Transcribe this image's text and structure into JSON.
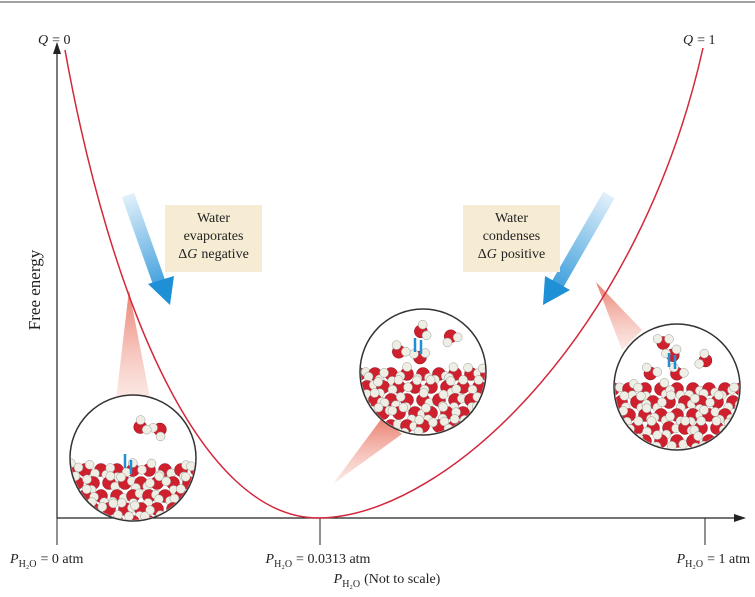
{
  "top_left": {
    "symbol": "Q",
    "text": "= 0"
  },
  "top_right": {
    "symbol": "Q",
    "text": "= 1"
  },
  "y_axis_label": "Free energy",
  "callouts": [
    {
      "lines": [
        "Water",
        "evaporates"
      ],
      "delta": "Δ",
      "variable": "G",
      "sign": "negative"
    },
    {
      "lines": [
        "Water",
        "condenses"
      ],
      "delta": "Δ",
      "variable": "G",
      "sign": "positive"
    }
  ],
  "x_labels": [
    {
      "symbol": "P",
      "subscript": "H₂O",
      "text": "= 0 atm"
    },
    {
      "symbol": "P",
      "subscript": "H₂O",
      "text": "= 0.0313 atm"
    },
    {
      "symbol": "P",
      "subscript": "H₂O",
      "text": "= 1 atm"
    }
  ],
  "x_title": {
    "symbol": "P",
    "subscript": "H₂O",
    "text": "(Not to scale)"
  }
}
